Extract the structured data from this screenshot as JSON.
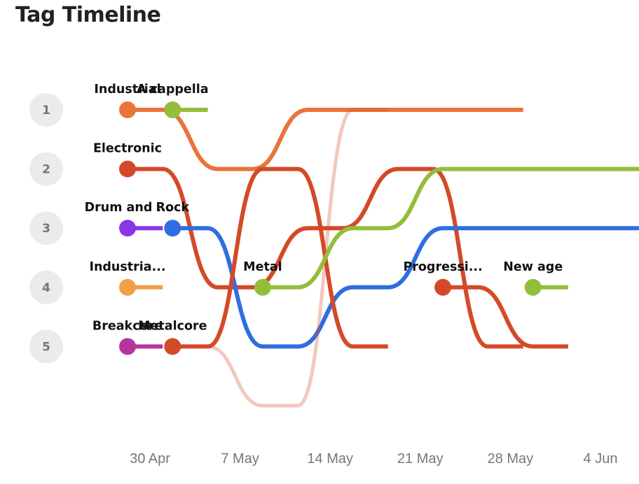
{
  "title": "Tag Timeline",
  "chart_data": {
    "type": "bump",
    "title": "Tag Timeline",
    "ranks": [
      1,
      2,
      3,
      4,
      5
    ],
    "x_ticks": [
      "30 Apr",
      "7 May",
      "14 May",
      "21 May",
      "28 May",
      "4 Jun"
    ],
    "series": [
      {
        "name": "Industrial",
        "color": "#E8743B",
        "start": 0,
        "ranks": [
          1,
          1,
          2,
          1,
          1,
          1,
          1,
          1,
          1,
          1
        ]
      },
      {
        "name": "A cappella",
        "color": "#93BE3B",
        "start": 1,
        "ranks": [
          1,
          1
        ]
      },
      {
        "name": "Electronic",
        "color": "#D44A28",
        "start": 0,
        "ranks": [
          2,
          2,
          4,
          4,
          3,
          3,
          2,
          2,
          5,
          5
        ]
      },
      {
        "name": "Drum and ...",
        "color": "#8A35E6",
        "start": 0,
        "ranks": [
          3,
          3
        ]
      },
      {
        "name": "Rock",
        "color": "#2F6DE0",
        "start": 1,
        "ranks": [
          3,
          3,
          5,
          5,
          4,
          4,
          3,
          3,
          3,
          3,
          3,
          3
        ]
      },
      {
        "name": "Industria...",
        "color": "#F0A045",
        "start": 0,
        "ranks": [
          4,
          4
        ]
      },
      {
        "name": "Breakcore",
        "color": "#B8339C",
        "start": 0,
        "ranks": [
          5,
          5
        ]
      },
      {
        "name": "Metalcore",
        "color": "#D44A28",
        "start": 1,
        "ranks": [
          5,
          5,
          2,
          2,
          5,
          5
        ],
        "faded": [
          5,
          5,
          6,
          6,
          1,
          1
        ]
      },
      {
        "name": "Metal",
        "color": "#93BE3B",
        "start": 3,
        "ranks": [
          4,
          4,
          3,
          3,
          2,
          2,
          2,
          2,
          2,
          2
        ]
      },
      {
        "name": "Progressi...",
        "color": "#D44A28",
        "start": 7,
        "ranks": [
          4,
          4,
          5,
          5
        ]
      },
      {
        "name": "New age",
        "color": "#93BE3B",
        "start": 9,
        "ranks": [
          4,
          4
        ]
      }
    ]
  }
}
